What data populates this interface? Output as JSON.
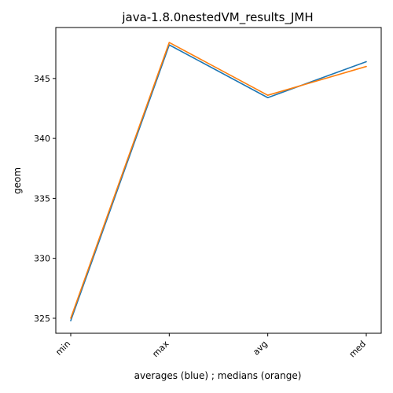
{
  "chart_data": {
    "type": "line",
    "title": "java-1.8.0nestedVM_results_JMH",
    "xlabel": "averages (blue) ; medians (orange)",
    "ylabel": "geom",
    "categories": [
      "min",
      "max",
      "avg",
      "med"
    ],
    "ylim": [
      323.75,
      349.25
    ],
    "yticks": [
      325,
      330,
      335,
      340,
      345
    ],
    "grid": false,
    "series": [
      {
        "color": "#1f77b4",
        "values": [
          324.8,
          347.8,
          343.4,
          346.4
        ]
      },
      {
        "color": "#ff7f0e",
        "values": [
          325.0,
          348.0,
          343.6,
          346.0
        ]
      }
    ]
  }
}
